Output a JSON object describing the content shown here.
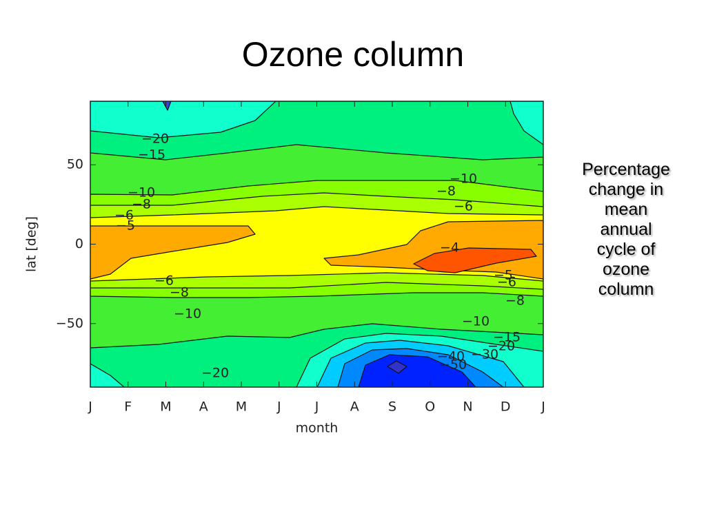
{
  "title": "Ozone column",
  "note_lines": [
    "Percentage",
    "change in",
    "mean",
    "annual",
    "cycle of",
    "ozone",
    "column"
  ],
  "chart_data": {
    "type": "contour",
    "x_label": "month",
    "y_label": "lat [deg]",
    "categories": [
      "J",
      "F",
      "M",
      "A",
      "M",
      "J",
      "J",
      "A",
      "S",
      "O",
      "N",
      "D",
      "J"
    ],
    "ylim": [
      -90,
      90
    ],
    "yticks": [
      {
        "value": -50,
        "label": "−50"
      },
      0,
      50
    ],
    "contour_labels": [
      {
        "value": -20,
        "label": "−20"
      },
      {
        "value": -15,
        "label": "−15"
      },
      {
        "value": -10,
        "label": "−10"
      },
      {
        "value": -8,
        "label": "−8"
      },
      {
        "value": -6,
        "label": "−6"
      },
      {
        "value": -5,
        "label": "−5"
      },
      {
        "value": -10,
        "label": "−10"
      },
      {
        "value": -8,
        "label": "−8"
      },
      {
        "value": -6,
        "label": "−6"
      },
      {
        "value": -4,
        "label": "−4"
      },
      {
        "value": -6,
        "label": "−6"
      },
      {
        "value": -8,
        "label": "−8"
      },
      {
        "value": -10,
        "label": "−10"
      },
      {
        "value": -5,
        "label": "−5"
      },
      {
        "value": -6,
        "label": "−6"
      },
      {
        "value": -8,
        "label": "−8"
      },
      {
        "value": -10,
        "label": "−10"
      },
      {
        "value": -15,
        "label": "−15"
      },
      {
        "value": -20,
        "label": "−20"
      },
      {
        "value": -30,
        "label": "−30"
      },
      {
        "value": -40,
        "label": "−40"
      },
      {
        "value": -50,
        "label": "−50"
      },
      {
        "value": -20,
        "label": "−20"
      }
    ]
  }
}
